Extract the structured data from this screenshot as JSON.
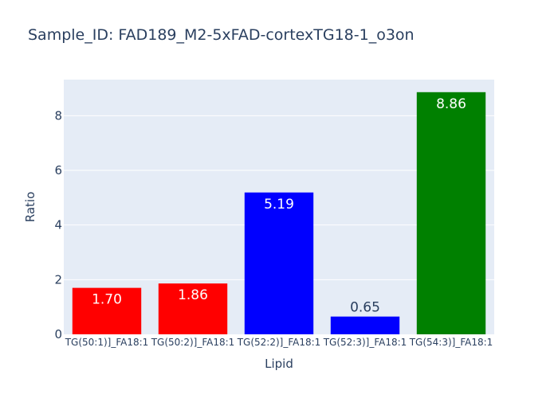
{
  "chart_data": {
    "type": "bar",
    "title": "Sample_ID: FAD189_M2-5xFAD-cortexTG18-1_o3on",
    "xlabel": "Lipid",
    "ylabel": "Ratio",
    "categories": [
      "TG(50:1)]_FA18:1",
      "TG(50:2)]_FA18:1",
      "TG(52:2)]_FA18:1",
      "TG(52:3)]_FA18:1",
      "TG(54:3)]_FA18:1"
    ],
    "values": [
      1.7,
      1.86,
      5.19,
      0.65,
      8.86
    ],
    "value_labels": [
      "1.70",
      "1.86",
      "5.19",
      "0.65",
      "8.86"
    ],
    "bar_colors": [
      "#ff0000",
      "#ff0000",
      "#0000ff",
      "#0000ff",
      "#008000"
    ],
    "label_positions": [
      "inside",
      "inside",
      "inside",
      "outside",
      "inside"
    ],
    "ylim": [
      0,
      9.32
    ],
    "yticks": [
      0,
      2,
      4,
      6,
      8
    ],
    "ytick_labels": [
      "0",
      "2",
      "4",
      "6",
      "8"
    ],
    "grid": true,
    "plot_bgcolor": "#e5ecf6",
    "text_color": "#2a3f5f"
  }
}
